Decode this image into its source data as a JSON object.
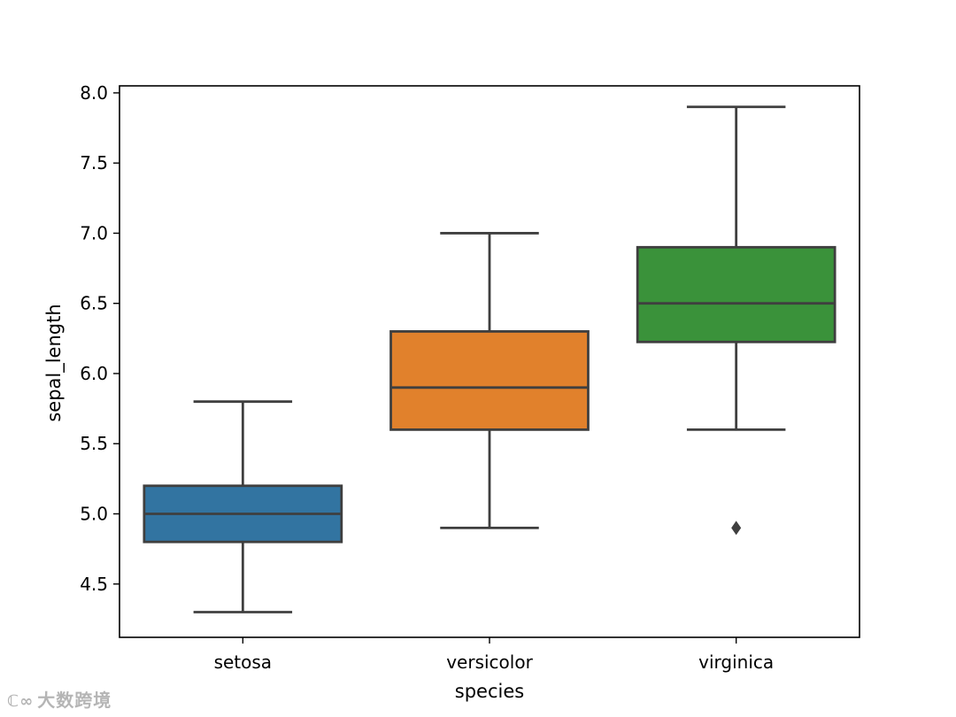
{
  "chart_data": {
    "type": "box",
    "xlabel": "species",
    "ylabel": "sepal_length",
    "categories": [
      "setosa",
      "versicolor",
      "virginica"
    ],
    "ylim": [
      4.12,
      8.05
    ],
    "yticks": [
      4.5,
      5.0,
      5.5,
      6.0,
      6.5,
      7.0,
      7.5,
      8.0
    ],
    "ytick_labels": [
      "4.5",
      "5.0",
      "5.5",
      "6.0",
      "6.5",
      "7.0",
      "7.5",
      "8.0"
    ],
    "grid": false,
    "boxes": [
      {
        "category": "setosa",
        "whisker_low": 4.3,
        "q1": 4.8,
        "median": 5.0,
        "q3": 5.2,
        "whisker_high": 5.8,
        "outliers": [],
        "color": "#3274a1"
      },
      {
        "category": "versicolor",
        "whisker_low": 4.9,
        "q1": 5.6,
        "median": 5.9,
        "q3": 6.3,
        "whisker_high": 7.0,
        "outliers": [],
        "color": "#e1812c"
      },
      {
        "category": "virginica",
        "whisker_low": 5.6,
        "q1": 6.225,
        "median": 6.5,
        "q3": 6.9,
        "whisker_high": 7.9,
        "outliers": [
          4.9
        ],
        "color": "#3a923a"
      }
    ]
  },
  "watermark": "大数跨境",
  "colors": {
    "line": "#3f3f3f",
    "axis": "#000000"
  }
}
